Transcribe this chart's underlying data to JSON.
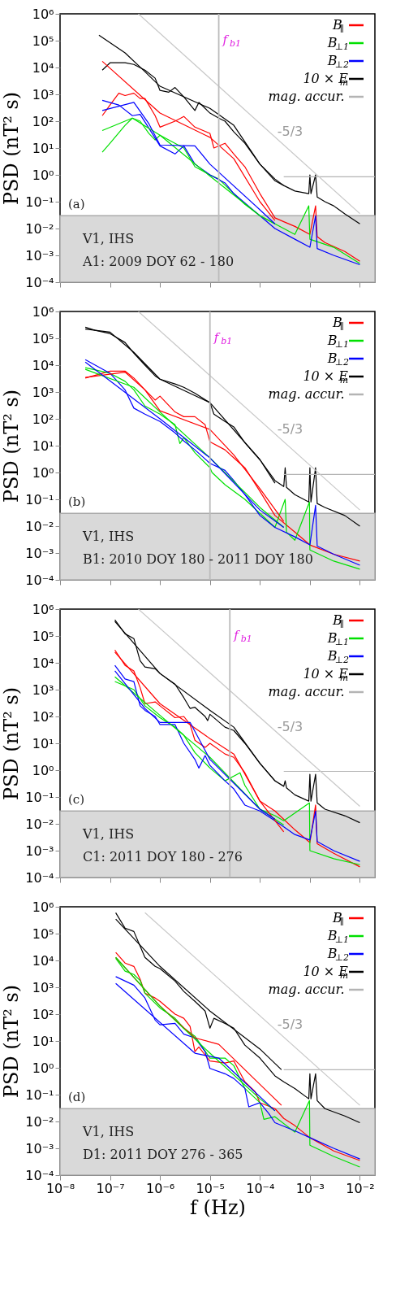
{
  "chart_data": [
    {
      "type": "line",
      "log": "xy",
      "legend": "top right",
      "ylabel": "PSD (nT² s)",
      "tick_labels": "y",
      "xlim": [
        1e-08,
        0.02
      ],
      "ylim": [
        0.0001,
        1000000.0
      ],
      "xticks": [
        1e-08,
        1e-07,
        1e-06,
        1e-05,
        0.0001,
        0.001,
        0.01
      ],
      "yticks": [
        {
          "value": 0.0001,
          "label": "10⁻⁴"
        },
        {
          "value": 0.001,
          "label": "10⁻³"
        },
        {
          "value": 0.01,
          "label": "10⁻²"
        },
        {
          "value": 0.1,
          "label": "10⁻¹"
        },
        {
          "value": 1,
          "label": "10⁰"
        },
        {
          "value": 10,
          "label": "10¹"
        },
        {
          "value": 100,
          "label": "10²"
        },
        {
          "value": 1000,
          "label": "10³"
        },
        {
          "value": 10000,
          "label": "10⁴"
        },
        {
          "value": 100000,
          "label": "10⁵"
        },
        {
          "value": 1000000,
          "label": "10⁶"
        }
      ],
      "series": [
        {
          "name": "B$_{∥}$",
          "color": "#ff0000",
          "x": [
            7e-08,
            1e-07,
            1.5e-07,
            2e-07,
            3e-07,
            4e-07,
            5e-07,
            8e-07,
            1e-06,
            2e-06,
            3e-06,
            5e-06,
            1e-05,
            1.2e-05,
            2e-05,
            3e-05,
            5e-05,
            0.0001,
            0.0002,
            0.0003,
            0.0005,
            0.001,
            0.0013,
            0.0014,
            0.002,
            0.005,
            0.01
          ],
          "values": [
            160,
            400,
            1100,
            900,
            1100,
            700,
            700,
            160,
            60,
            100,
            150,
            60,
            35,
            10,
            15,
            6,
            2,
            0.2,
            0.025,
            0.018,
            0.012,
            0.006,
            0.07,
            0.005,
            0.003,
            0.0014,
            0.0006
          ]
        },
        {
          "name": "B$_{⊥1}$",
          "color": "#00e000",
          "x": [
            7e-08,
            1e-07,
            2e-07,
            2.8e-07,
            4e-07,
            6e-07,
            8e-07,
            1e-06,
            2e-06,
            3e-06,
            5e-06,
            1e-05,
            1.5e-05,
            3e-05,
            5e-05,
            0.0001,
            0.0002,
            0.0005,
            0.00095,
            0.001,
            0.003,
            0.01
          ],
          "values": [
            7,
            15,
            70,
            130,
            100,
            35,
            20,
            30,
            15,
            10,
            2,
            1,
            0.7,
            0.2,
            0.08,
            0.03,
            0.015,
            0.006,
            0.07,
            0.004,
            0.002,
            0.0005
          ]
        },
        {
          "name": "B$_{⊥2}$",
          "color": "#0000ff",
          "x": [
            7e-08,
            1.5e-07,
            2.8e-07,
            4e-07,
            6e-07,
            1e-06,
            2e-06,
            3e-06,
            5e-06,
            1e-05,
            2e-05,
            3e-05,
            0.0001,
            0.0002,
            0.0005,
            0.001,
            0.0013,
            0.0014,
            0.003,
            0.01
          ],
          "values": [
            600,
            400,
            160,
            180,
            55,
            12,
            6,
            12,
            2.5,
            1,
            0.5,
            0.2,
            0.03,
            0.01,
            0.004,
            0.002,
            0.03,
            0.0018,
            0.001,
            0.00045
          ]
        },
        {
          "name": "10 × E$_{m}$",
          "color": "#000000",
          "x": [
            7e-08,
            1e-07,
            2e-07,
            3e-07,
            5e-07,
            8e-07,
            1e-06,
            1.5e-06,
            2e-06,
            3e-06,
            5e-06,
            6e-06,
            1e-05,
            1.5e-05,
            2e-05,
            3e-05,
            5e-05,
            0.0001,
            0.0002,
            0.0003,
            0.0005,
            0.00095,
            0.001,
            0.00105,
            0.0013,
            0.0014,
            0.002,
            0.003,
            0.005,
            0.01
          ],
          "values": [
            8000,
            15000,
            15000,
            13000,
            8000,
            4000,
            1400,
            1200,
            1800,
            800,
            250,
            500,
            200,
            130,
            100,
            40,
            15,
            2.5,
            0.7,
            0.4,
            0.25,
            0.2,
            1,
            0.2,
            1,
            0.15,
            0.1,
            0.07,
            0.035,
            0.015
          ]
        },
        {
          "name": "mag. accur.",
          "color": "#b4b4b4",
          "x": [
            0.0003,
            0.02
          ],
          "values": [
            0.85,
            0.85
          ]
        },
        {
          "color": "#ff0000",
          "x": [
            7e-08,
            1e-06,
            1e-05,
            3e-05,
            0.0001,
            0.0002
          ],
          "values": [
            17000,
            200,
            25,
            4,
            0.1,
            0.02
          ]
        },
        {
          "color": "#00e000",
          "x": [
            7e-08,
            2.8e-07,
            1e-06,
            1e-05,
            0.0001,
            0.0002
          ],
          "values": [
            45,
            130,
            30,
            0.9,
            0.03,
            0.015
          ]
        },
        {
          "color": "#0000ff",
          "x": [
            7e-08,
            3e-07,
            6e-07,
            1e-06,
            5e-06,
            1e-05,
            0.0001,
            0.0002
          ],
          "values": [
            250,
            500,
            80,
            13,
            12,
            2.5,
            0.05,
            0.015
          ]
        },
        {
          "color": "#000000",
          "x": [
            6e-08,
            2e-07,
            5e-07,
            1e-06,
            1e-05,
            3e-05,
            0.0001,
            0.0002,
            0.0003
          ],
          "values": [
            160000,
            35000,
            7000,
            2000,
            300,
            70,
            2.5,
            0.6,
            0.4
          ]
        },
        {
          "color": "#c8c8c8",
          "x": [
            3.7e-07,
            0.01
          ],
          "values": [
            1000000,
            0.036
          ]
        }
      ],
      "bands": [
        {
          "axis": "y",
          "from": 0.0001,
          "to": 0.03,
          "color": "#d9d9d9"
        }
      ],
      "ref_lines": [
        {
          "axis": "x",
          "value": 1.5e-05,
          "label": "f$_{b1}$",
          "color": "#bbbbbb"
        }
      ],
      "annotations": [
        "(a)",
        "V1, IHS",
        "A1: 2009 DOY 62 - 180",
        "-5/3"
      ]
    },
    {
      "type": "line",
      "log": "xy",
      "legend": "top right",
      "ylabel": "PSD (nT² s)",
      "tick_labels": "y",
      "xlim": [
        1e-08,
        0.02
      ],
      "ylim": [
        0.0001,
        1000000.0
      ],
      "xticks": [
        1e-08,
        1e-07,
        1e-06,
        1e-05,
        0.0001,
        0.001,
        0.01
      ],
      "yticks": [
        {
          "value": 0.0001,
          "label": "10⁻⁴"
        },
        {
          "value": 0.001,
          "label": "10⁻³"
        },
        {
          "value": 0.01,
          "label": "10⁻²"
        },
        {
          "value": 0.1,
          "label": "10⁻¹"
        },
        {
          "value": 1,
          "label": "10⁰"
        },
        {
          "value": 10,
          "label": "10¹"
        },
        {
          "value": 100,
          "label": "10²"
        },
        {
          "value": 1000,
          "label": "10³"
        },
        {
          "value": 10000,
          "label": "10⁴"
        },
        {
          "value": 100000,
          "label": "10⁵"
        },
        {
          "value": 1000000,
          "label": "10⁶"
        }
      ],
      "series": [
        {
          "name": "B$_{∥}$",
          "color": "#ff0000",
          "x": [
            3.2e-08,
            1e-07,
            2e-07,
            3e-07,
            5e-07,
            8e-07,
            1e-06,
            2e-06,
            3e-06,
            5e-06,
            8e-06,
            1e-05,
            2e-05,
            3e-05,
            5e-05,
            0.0001,
            0.0002,
            0.0005,
            0.001,
            0.003,
            0.01
          ],
          "values": [
            3300,
            6000,
            6000,
            3300,
            1200,
            500,
            700,
            180,
            120,
            120,
            60,
            14,
            7,
            3.5,
            1.5,
            0.2,
            0.025,
            0.006,
            0.002,
            0.0009,
            0.0005
          ]
        },
        {
          "name": "B$_{⊥1}$",
          "color": "#00e000",
          "x": [
            3.2e-08,
            1e-07,
            2e-07,
            3e-07,
            5e-07,
            1e-06,
            2e-06,
            2.5e-06,
            3e-06,
            5e-06,
            1e-05,
            1.1e-05,
            2e-05,
            3e-05,
            5e-05,
            0.0001,
            0.0002,
            0.00032,
            0.00034,
            0.0005,
            0.00098,
            0.001,
            0.003,
            0.01
          ],
          "values": [
            8000,
            5000,
            2500,
            1200,
            300,
            150,
            60,
            12,
            20,
            5.5,
            1.5,
            1,
            0.35,
            0.2,
            0.1,
            0.03,
            0.009,
            0.1,
            0.006,
            0.003,
            0.08,
            0.0013,
            0.0005,
            0.00025
          ]
        },
        {
          "name": "B$_{⊥2}$",
          "color": "#0000ff",
          "x": [
            3.2e-08,
            1e-07,
            2e-07,
            3e-07,
            5e-07,
            1e-06,
            2e-06,
            3e-06,
            5e-06,
            1e-05,
            2e-05,
            3e-05,
            5e-05,
            0.0001,
            0.0002,
            0.0005,
            0.001,
            0.0013,
            0.0014,
            0.003,
            0.01
          ],
          "values": [
            16000,
            5000,
            1200,
            250,
            150,
            80,
            30,
            15,
            7,
            2.2,
            1.2,
            0.5,
            0.15,
            0.025,
            0.009,
            0.004,
            0.002,
            0.06,
            0.0018,
            0.0009,
            0.00035
          ]
        },
        {
          "name": "10 × E$_{m}$",
          "color": "#000000",
          "x": [
            3.2e-08,
            5e-08,
            1e-07,
            2e-07,
            3e-07,
            5e-07,
            8e-07,
            1e-06,
            2e-06,
            3e-06,
            5e-06,
            1e-05,
            1.2e-05,
            2e-05,
            3e-05,
            5e-05,
            0.0001,
            0.0002,
            0.0003,
            0.00032,
            0.00034,
            0.0005,
            0.00095,
            0.001,
            0.00105,
            0.0013,
            0.0014,
            0.002,
            0.005,
            0.01
          ],
          "values": [
            260000,
            200000,
            150000,
            70000,
            28000,
            10000,
            4000,
            3000,
            2000,
            1500,
            900,
            400,
            150,
            80,
            50,
            13,
            3,
            0.5,
            0.3,
            1.5,
            0.28,
            0.15,
            0.08,
            1.5,
            0.08,
            1.5,
            0.07,
            0.05,
            0.025,
            0.01
          ]
        },
        {
          "name": "mag. accur.",
          "color": "#b4b4b4",
          "x": [
            0.0003,
            0.02
          ],
          "values": [
            0.85,
            0.85
          ]
        },
        {
          "color": "#ff0000",
          "x": [
            3.2e-08,
            2e-07,
            5e-07,
            1e-06,
            1e-05,
            3e-05,
            0.0001,
            0.0003
          ],
          "values": [
            3500,
            5500,
            1200,
            200,
            40,
            4.5,
            0.25,
            0.015
          ]
        },
        {
          "color": "#00e000",
          "x": [
            3.2e-08,
            3e-07,
            1e-06,
            1e-05,
            0.0001,
            0.0003
          ],
          "values": [
            7000,
            1500,
            180,
            3.5,
            0.05,
            0.009
          ]
        },
        {
          "color": "#0000ff",
          "x": [
            3.2e-08,
            1e-06,
            1e-05,
            0.0001,
            0.0003
          ],
          "values": [
            13000,
            100,
            3.5,
            0.04,
            0.009
          ]
        },
        {
          "color": "#000000",
          "x": [
            3.2e-08,
            1e-07,
            3e-07,
            1e-06,
            1e-05,
            0.0001,
            0.0002
          ],
          "values": [
            220000,
            170000,
            30000,
            3000,
            400,
            3,
            0.4
          ]
        },
        {
          "color": "#c8c8c8",
          "x": [
            3.7e-07,
            0.01
          ],
          "values": [
            1000000,
            0.04
          ]
        }
      ],
      "bands": [
        {
          "axis": "y",
          "from": 0.0001,
          "to": 0.03,
          "color": "#d9d9d9"
        }
      ],
      "ref_lines": [
        {
          "axis": "x",
          "value": 1e-05,
          "label": "f$_{b1}$",
          "color": "#bbbbbb"
        }
      ],
      "annotations": [
        "(b)",
        "V1, IHS",
        "B1: 2010 DOY 180 - 2011 DOY 180",
        "-5/3"
      ]
    },
    {
      "type": "line",
      "log": "xy",
      "legend": "top right",
      "ylabel": "PSD (nT² s)",
      "tick_labels": "y",
      "xlim": [
        1e-08,
        0.02
      ],
      "ylim": [
        0.0001,
        1000000.0
      ],
      "xticks": [
        1e-08,
        1e-07,
        1e-06,
        1e-05,
        0.0001,
        0.001,
        0.01
      ],
      "yticks": [
        {
          "value": 0.0001,
          "label": "10⁻⁴"
        },
        {
          "value": 0.001,
          "label": "10⁻³"
        },
        {
          "value": 0.01,
          "label": "10⁻²"
        },
        {
          "value": 0.1,
          "label": "10⁻¹"
        },
        {
          "value": 1,
          "label": "10⁰"
        },
        {
          "value": 10,
          "label": "10¹"
        },
        {
          "value": 100,
          "label": "10²"
        },
        {
          "value": 1000,
          "label": "10³"
        },
        {
          "value": 10000,
          "label": "10⁴"
        },
        {
          "value": 100000,
          "label": "10⁵"
        },
        {
          "value": 1000000,
          "label": "10⁶"
        }
      ],
      "series": [
        {
          "name": "B$_{∥}$",
          "color": "#ff0000",
          "x": [
            1.25e-07,
            2e-07,
            3e-07,
            4e-07,
            5e-07,
            8e-07,
            1e-06,
            2e-06,
            3e-06,
            4e-06,
            5e-06,
            8e-06,
            1e-05,
            2e-05,
            3e-05,
            5e-05,
            0.0001,
            0.0002,
            0.0005,
            0.001,
            0.0013,
            0.0014,
            0.003,
            0.01
          ],
          "values": [
            30000,
            8000,
            5000,
            1200,
            300,
            350,
            250,
            90,
            100,
            50,
            13,
            7,
            10,
            4,
            3,
            0.8,
            0.07,
            0.03,
            0.006,
            0.002,
            0.05,
            0.0018,
            0.0008,
            0.00025
          ]
        },
        {
          "name": "B$_{⊥1}$",
          "color": "#00e000",
          "x": [
            1.25e-07,
            3e-07,
            5e-07,
            1e-06,
            2e-06,
            3e-06,
            5e-06,
            1e-05,
            2e-05,
            4e-05,
            5e-05,
            0.0001,
            0.0002,
            0.0003,
            0.00098,
            0.001,
            0.003,
            0.01
          ],
          "values": [
            2000,
            1000,
            250,
            90,
            40,
            20,
            4.5,
            1.2,
            0.4,
            0.8,
            0.27,
            0.035,
            0.02,
            0.013,
            0.06,
            0.001,
            0.0005,
            0.0003
          ]
        },
        {
          "name": "B$_{⊥2}$",
          "color": "#0000ff",
          "x": [
            1.25e-07,
            2e-07,
            3e-07,
            4e-07,
            5e-07,
            8e-07,
            1e-06,
            2e-06,
            3e-06,
            5e-06,
            6e-06,
            8e-06,
            1e-05,
            2e-05,
            3e-05,
            5e-05,
            0.0001,
            0.0002,
            0.0005,
            0.001,
            0.0013,
            0.0014,
            0.003,
            0.01
          ],
          "values": [
            8000,
            2500,
            2000,
            250,
            170,
            100,
            50,
            50,
            10,
            2.5,
            1.2,
            3.5,
            1.5,
            0.4,
            0.2,
            0.05,
            0.03,
            0.013,
            0.004,
            0.0025,
            0.03,
            0.0022,
            0.001,
            0.0004
          ]
        },
        {
          "name": "10 × E$_{m}$",
          "color": "#000000",
          "x": [
            1.25e-07,
            2e-07,
            3e-07,
            4e-07,
            5e-07,
            8e-07,
            1e-06,
            2e-06,
            3e-06,
            4e-06,
            5e-06,
            8e-06,
            9e-06,
            1e-05,
            2e-05,
            3e-05,
            5e-05,
            0.0001,
            0.0002,
            0.0003,
            0.00032,
            0.00034,
            0.0005,
            0.00095,
            0.001,
            0.00105,
            0.0013,
            0.0014,
            0.002,
            0.005,
            0.01
          ],
          "values": [
            400000,
            120000,
            80000,
            12000,
            7000,
            6000,
            4000,
            1600,
            500,
            200,
            220,
            100,
            70,
            120,
            40,
            30,
            10,
            1.8,
            0.4,
            0.25,
            0.4,
            0.22,
            0.12,
            0.07,
            0.7,
            0.07,
            0.7,
            0.06,
            0.035,
            0.02,
            0.011
          ]
        },
        {
          "name": "mag. accur.",
          "color": "#b4b4b4",
          "x": [
            0.0003,
            0.02
          ],
          "values": [
            0.9,
            0.9
          ]
        },
        {
          "color": "#ff0000",
          "x": [
            1.25e-07,
            1e-06,
            1e-05,
            3e-05,
            0.0001,
            0.0003
          ],
          "values": [
            25000,
            300,
            15,
            4,
            0.07,
            0.005
          ]
        },
        {
          "color": "#00e000",
          "x": [
            1.25e-07,
            1e-06,
            1e-05,
            0.0001,
            0.0003
          ],
          "values": [
            3000,
            110,
            3,
            0.035,
            0.009
          ]
        },
        {
          "color": "#0000ff",
          "x": [
            1.25e-07,
            5e-07,
            1e-06,
            4e-06,
            1e-05,
            0.0001,
            0.0002
          ],
          "values": [
            5000,
            200,
            60,
            60,
            2.5,
            0.035,
            0.015
          ]
        },
        {
          "color": "#000000",
          "x": [
            1.25e-07,
            1e-06,
            1e-05,
            3e-05,
            0.0001,
            0.0002
          ],
          "values": [
            350000,
            4000,
            170,
            40,
            1.8,
            0.4
          ]
        },
        {
          "color": "#c8c8c8",
          "x": [
            3.7e-07,
            0.01
          ],
          "values": [
            1000000,
            0.045
          ]
        }
      ],
      "bands": [
        {
          "axis": "y",
          "from": 0.0001,
          "to": 0.03,
          "color": "#d9d9d9"
        }
      ],
      "ref_lines": [
        {
          "axis": "x",
          "value": 2.5e-05,
          "label": "f$_{b1}$",
          "color": "#bbbbbb"
        }
      ],
      "annotations": [
        "(c)",
        "V1, IHS",
        "C1: 2011 DOY 180 - 276",
        "-5/3"
      ]
    },
    {
      "type": "line",
      "log": "xy",
      "legend": "top right",
      "ylabel": "PSD (nT² s)",
      "xlabel": "f (Hz)",
      "xlim": [
        1e-08,
        0.02
      ],
      "ylim": [
        0.0001,
        1000000.0
      ],
      "xticks": [
        {
          "value": 1e-08,
          "label": "10⁻⁸"
        },
        {
          "value": 1e-07,
          "label": "10⁻⁷"
        },
        {
          "value": 1e-06,
          "label": "10⁻⁶"
        },
        {
          "value": 1e-05,
          "label": "10⁻⁵"
        },
        {
          "value": 0.0001,
          "label": "10⁻⁴"
        },
        {
          "value": 0.001,
          "label": "10⁻³"
        },
        {
          "value": 0.01,
          "label": "10⁻²"
        }
      ],
      "yticks": [
        {
          "value": 0.0001,
          "label": "10⁻⁴"
        },
        {
          "value": 0.001,
          "label": "10⁻³"
        },
        {
          "value": 0.01,
          "label": "10⁻²"
        },
        {
          "value": 0.1,
          "label": "10⁻¹"
        },
        {
          "value": 1,
          "label": "10⁰"
        },
        {
          "value": 10,
          "label": "10¹"
        },
        {
          "value": 100,
          "label": "10²"
        },
        {
          "value": 1000,
          "label": "10³"
        },
        {
          "value": 10000,
          "label": "10⁴"
        },
        {
          "value": 100000,
          "label": "10⁵"
        },
        {
          "value": 1000000,
          "label": "10⁶"
        }
      ],
      "series": [
        {
          "name": "B$_{∥}$",
          "color": "#ff0000",
          "x": [
            1.3e-07,
            2e-07,
            3e-07,
            4e-07,
            5e-07,
            8e-07,
            1e-06,
            2e-06,
            3e-06,
            4e-06,
            5e-06,
            6e-06,
            8e-06,
            1e-05,
            2e-05,
            3e-05,
            5e-05,
            8e-05,
            0.0001,
            0.0002,
            0.0003,
            0.0005,
            0.001,
            0.003,
            0.01
          ],
          "values": [
            20000,
            8000,
            6000,
            2000,
            600,
            400,
            300,
            100,
            70,
            35,
            4,
            6,
            3,
            1.8,
            1.5,
            1.8,
            0.3,
            0.13,
            0.05,
            0.03,
            0.013,
            0.007,
            0.0025,
            0.0008,
            0.00035
          ]
        },
        {
          "name": "B$_{⊥1}$",
          "color": "#00e000",
          "x": [
            1.3e-07,
            2e-07,
            3e-07,
            4e-07,
            5e-07,
            1e-06,
            2e-06,
            3e-06,
            5e-06,
            1e-05,
            2e-05,
            3e-05,
            5e-05,
            0.0001,
            0.00012,
            0.0002,
            0.0005,
            0.00098,
            0.001,
            0.003,
            0.01
          ],
          "values": [
            12000,
            4000,
            3000,
            1800,
            600,
            170,
            70,
            30,
            15,
            2.3,
            2.3,
            1.2,
            0.17,
            0.05,
            0.012,
            0.015,
            0.004,
            0.06,
            0.0013,
            0.0005,
            0.0002
          ]
        },
        {
          "name": "B$_{⊥2}$",
          "color": "#0000ff",
          "x": [
            1.3e-07,
            3e-07,
            5e-07,
            8e-07,
            1e-06,
            2e-06,
            3e-06,
            5e-06,
            8e-06,
            1e-05,
            2e-05,
            3e-05,
            5e-05,
            6e-05,
            0.0001,
            0.00015,
            0.0002,
            0.0005,
            0.001,
            0.003,
            0.01
          ],
          "values": [
            2500,
            1200,
            400,
            60,
            40,
            45,
            18,
            13,
            4,
            0.95,
            0.6,
            0.4,
            0.17,
            0.035,
            0.05,
            0.02,
            0.009,
            0.0045,
            0.0025,
            0.001,
            0.0004
          ]
        },
        {
          "name": "10 × E$_{m}$",
          "color": "#000000",
          "x": [
            1.3e-07,
            2e-07,
            3e-07,
            5e-07,
            8e-07,
            1e-06,
            2e-06,
            3e-06,
            5e-06,
            8e-06,
            1e-05,
            1.2e-05,
            2e-05,
            3e-05,
            5e-05,
            0.0001,
            0.0002,
            0.0003,
            0.0005,
            0.00095,
            0.001,
            0.00105,
            0.0013,
            0.0014,
            0.002,
            0.005,
            0.01
          ],
          "values": [
            600000,
            160000,
            120000,
            13000,
            6000,
            5000,
            1700,
            700,
            300,
            130,
            30,
            70,
            45,
            30,
            7,
            2.3,
            0.5,
            0.3,
            0.17,
            0.07,
            0.6,
            0.07,
            0.6,
            0.06,
            0.03,
            0.016,
            0.009
          ]
        },
        {
          "name": "mag. accur.",
          "color": "#b4b4b4",
          "x": [
            0.0003,
            0.02
          ],
          "values": [
            0.85,
            0.85
          ]
        },
        {
          "color": "#ff0000",
          "x": [
            1.3e-07,
            1e-06,
            5e-06,
            1.5e-05,
            0.00027
          ],
          "values": [
            13000,
            200,
            13,
            7.5,
            0.04
          ]
        },
        {
          "color": "#00e000",
          "x": [
            1.3e-07,
            1e-06,
            1e-05,
            0.0001,
            0.0002
          ],
          "values": [
            13000,
            200,
            3.5,
            0.07,
            0.025
          ]
        },
        {
          "color": "#0000ff",
          "x": [
            1.3e-07,
            5e-06,
            1.5e-05,
            0.0002
          ],
          "values": [
            1400,
            3.5,
            2.3,
            0.025
          ]
        },
        {
          "color": "#000000",
          "x": [
            1.3e-07,
            1e-06,
            1e-05,
            0.0001,
            0.00027
          ],
          "values": [
            350000,
            6000,
            130,
            5,
            0.85
          ]
        },
        {
          "color": "#c8c8c8",
          "x": [
            5e-07,
            0.01
          ],
          "values": [
            600000,
            0.04
          ]
        }
      ],
      "bands": [
        {
          "axis": "y",
          "from": 0.0001,
          "to": 0.03,
          "color": "#d9d9d9"
        }
      ],
      "annotations": [
        "(d)",
        "V1, IHS",
        "D1: 2011 DOY 276 - 365",
        "-5/3"
      ]
    }
  ]
}
